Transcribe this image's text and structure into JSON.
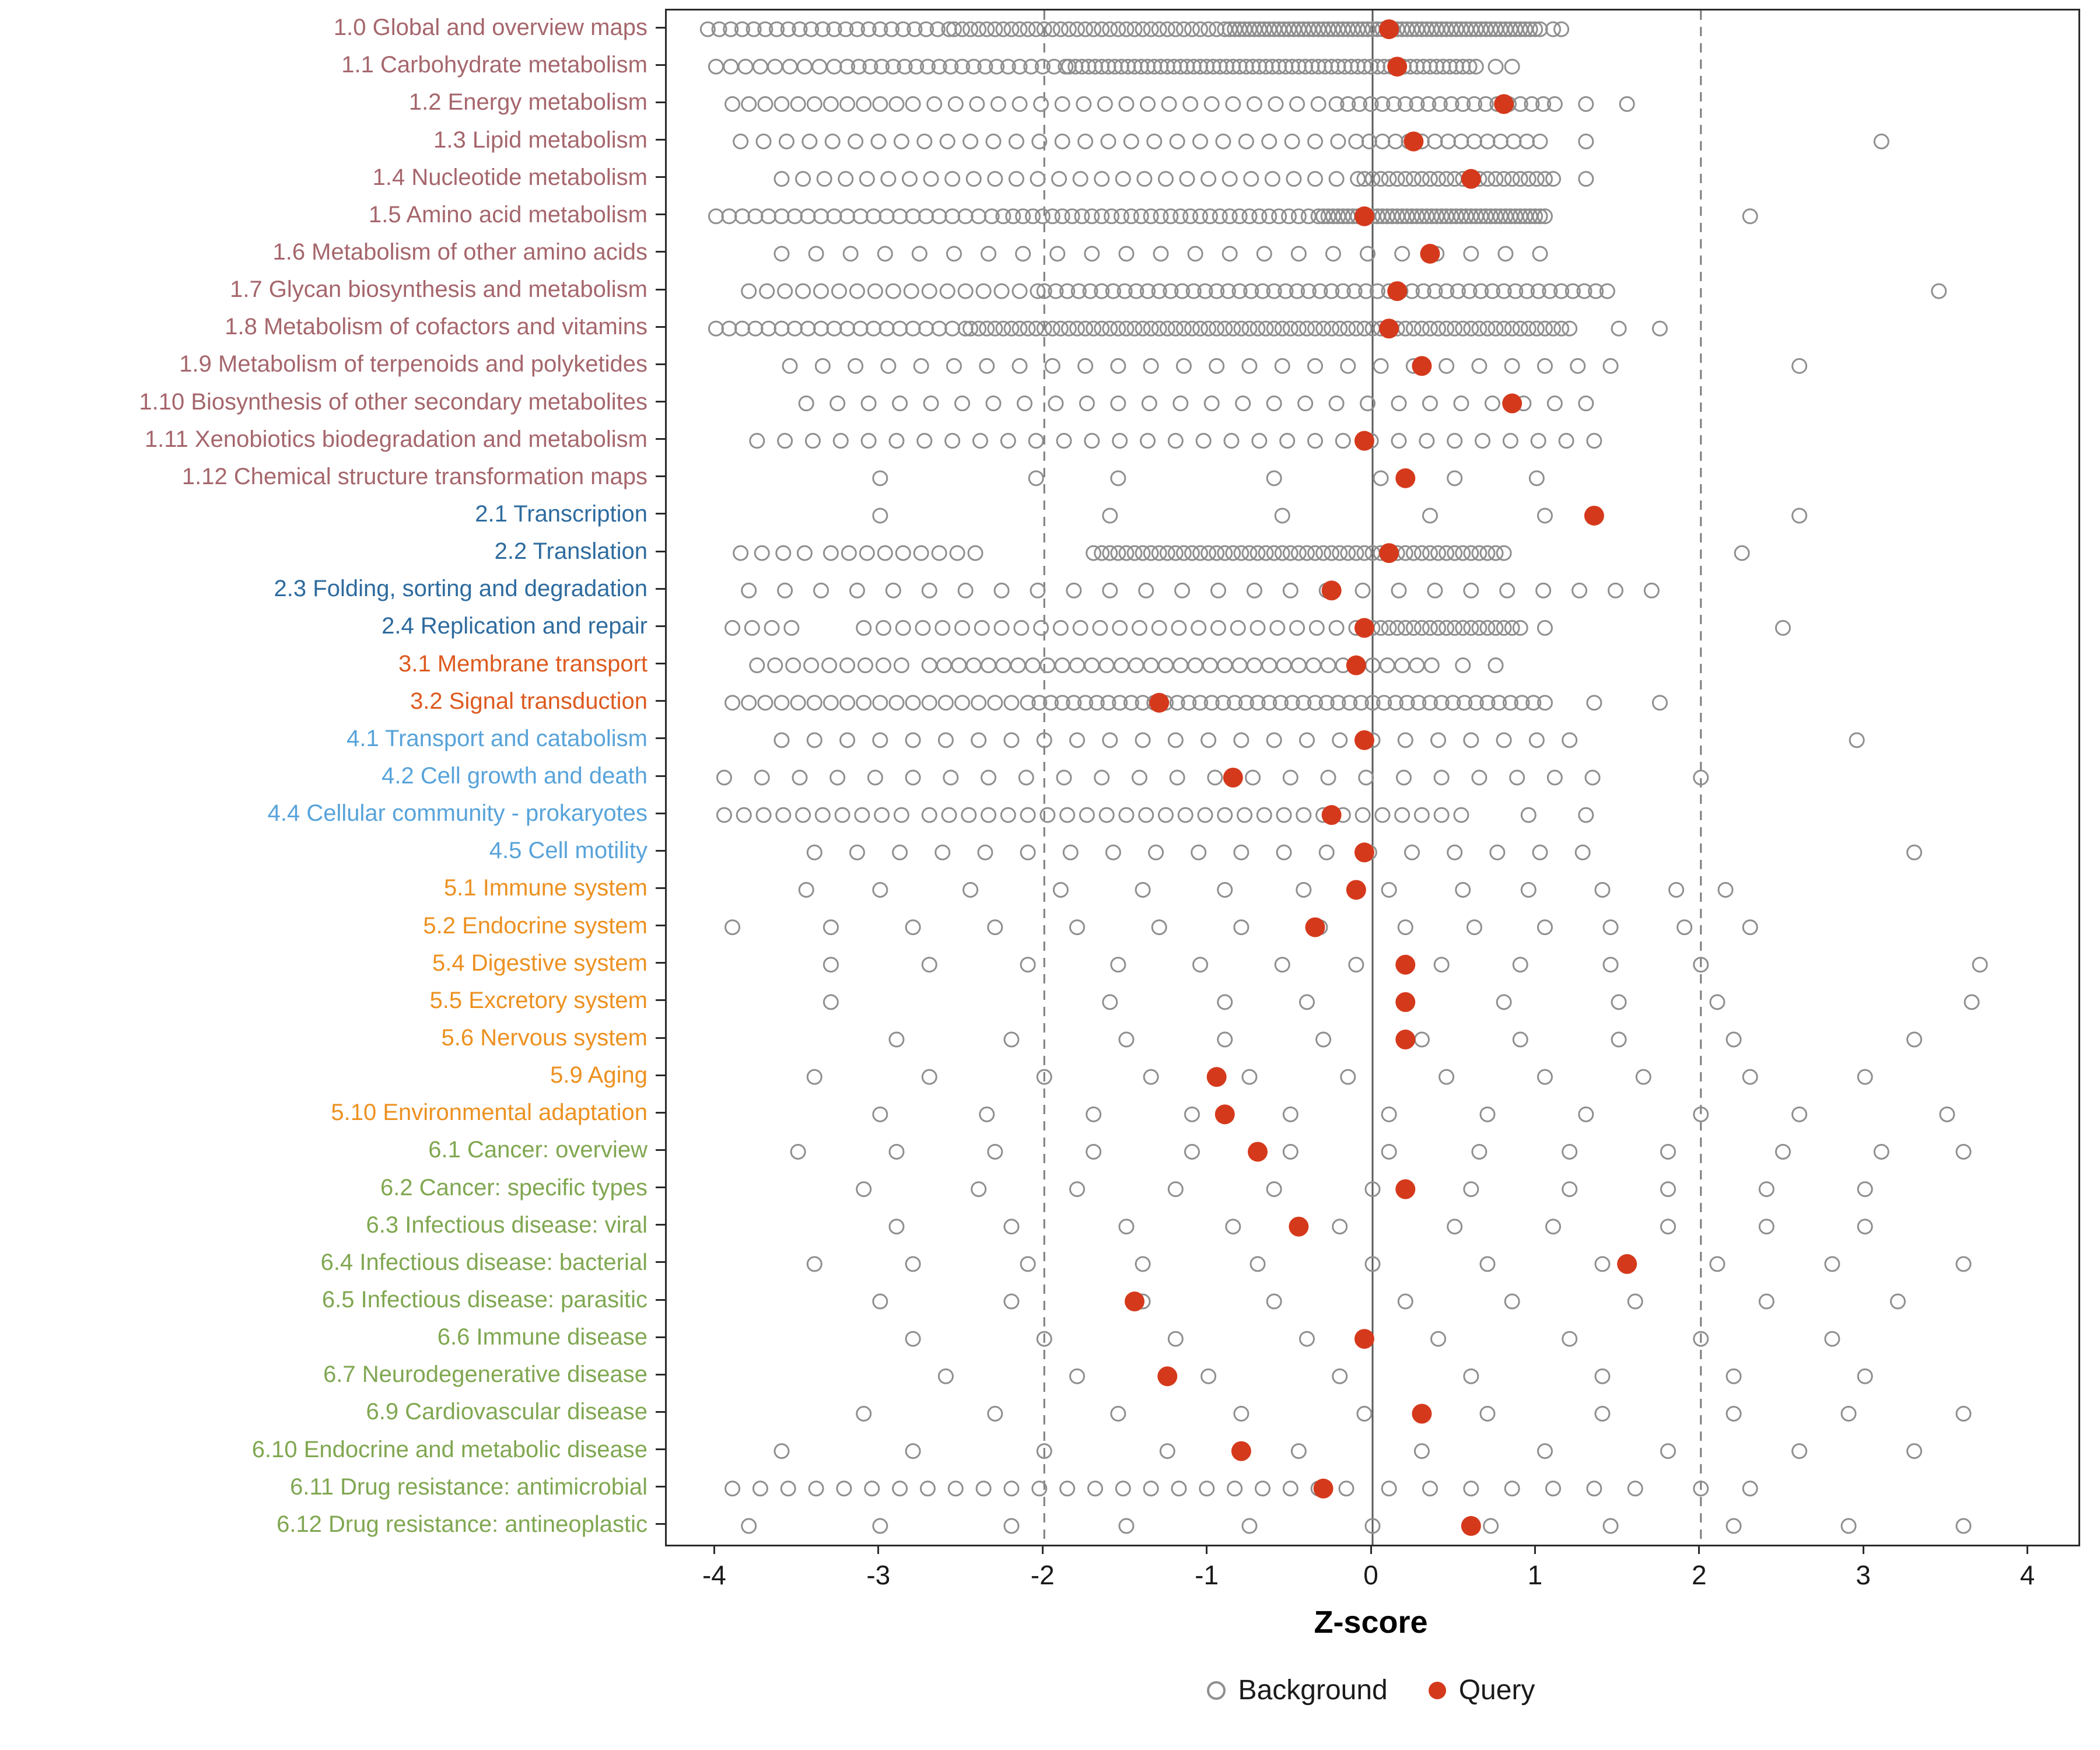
{
  "chart_data": {
    "type": "scatter",
    "title": "",
    "xlabel": "Z-score",
    "xlim": [
      -4.3,
      4.3
    ],
    "x_ticks": [
      -4,
      -3,
      -2,
      -1,
      0,
      1,
      2,
      3,
      4
    ],
    "reference_lines": {
      "solid": [
        0
      ],
      "dashed": [
        -2,
        2
      ]
    },
    "grid": false,
    "legend_position": "bottom",
    "legend": [
      {
        "label": "Background",
        "marker": "open-circle",
        "color": "#8f8f8f"
      },
      {
        "label": "Query",
        "marker": "filled-circle",
        "color": "#d5391c"
      }
    ],
    "marker_colors": {
      "background": "#8f8f8f",
      "query": "#d5391c"
    },
    "group_colors": {
      "metabolism": "#a5666c",
      "genetic-information-processing": "#2e6b9e",
      "environmental-information-processing": "#dd5a1f",
      "cellular-processes": "#58a3da",
      "organismal-systems": "#ec9121",
      "human-diseases": "#80a751"
    },
    "rows": [
      {
        "label": "1.0 Global and overview maps",
        "group": "metabolism",
        "query": 0.1,
        "background": [
          [
            -4.05,
            -2.6,
            0.07
          ],
          [
            -2.55,
            -0.9,
            0.05
          ],
          [
            -0.87,
            1.02,
            0.03
          ],
          1.1,
          1.15
        ]
      },
      {
        "label": "1.1 Carbohydrate metabolism",
        "group": "metabolism",
        "query": 0.15,
        "background": [
          [
            -4.0,
            -3.3,
            0.09
          ],
          [
            -3.2,
            -1.9,
            0.07
          ],
          [
            -1.85,
            0.62,
            0.04
          ],
          0.75,
          0.85
        ]
      },
      {
        "label": "1.2 Energy metabolism",
        "group": "metabolism",
        "query": 0.8,
        "background": [
          [
            -3.9,
            -2.9,
            0.1
          ],
          [
            -2.8,
            -0.3,
            0.13
          ],
          [
            -0.22,
            1.08,
            0.07
          ],
          1.3,
          1.55
        ]
      },
      {
        "label": "1.3 Lipid metabolism",
        "group": "metabolism",
        "query": 0.25,
        "background": [
          [
            -3.85,
            -0.2,
            0.14
          ],
          [
            -0.1,
            1.05,
            0.08
          ],
          1.3,
          3.1
        ]
      },
      {
        "label": "1.4 Nucleotide metabolism",
        "group": "metabolism",
        "query": 0.6,
        "background": [
          [
            -3.6,
            -0.15,
            0.13
          ],
          [
            -0.05,
            1.1,
            0.05
          ],
          1.3
        ]
      },
      {
        "label": "1.5 Amino acid metabolism",
        "group": "metabolism",
        "query": -0.05,
        "background": [
          [
            -4.0,
            -2.3,
            0.08
          ],
          [
            -2.25,
            -0.32,
            0.06
          ],
          [
            -0.3,
            1.05,
            0.03
          ],
          2.3
        ]
      },
      {
        "label": "1.6 Metabolism of other amino acids",
        "group": "metabolism",
        "query": 0.35,
        "background": [
          [
            -3.6,
            1.1,
            0.21
          ]
        ]
      },
      {
        "label": "1.7 Glycan biosynthesis and metabolism",
        "group": "metabolism",
        "query": 0.15,
        "background": [
          [
            -3.8,
            -2.05,
            0.11
          ],
          [
            -2.0,
            1.4,
            0.07
          ],
          3.45
        ]
      },
      {
        "label": "1.8 Metabolism of cofactors and vitamins",
        "group": "metabolism",
        "query": 0.1,
        "background": [
          [
            -4.0,
            -2.5,
            0.08
          ],
          [
            -2.45,
            1.2,
            0.05
          ],
          1.5,
          1.75
        ]
      },
      {
        "label": "1.9 Metabolism of terpenoids and polyketides",
        "group": "metabolism",
        "query": 0.3,
        "background": [
          [
            -3.55,
            1.45,
            0.2
          ],
          2.6
        ]
      },
      {
        "label": "1.10 Biosynthesis of other secondary metabolites",
        "group": "metabolism",
        "query": 0.85,
        "background": [
          [
            -3.45,
            1.3,
            0.19
          ]
        ]
      },
      {
        "label": "1.11 Xenobiotics biodegradation and metabolism",
        "group": "metabolism",
        "query": -0.05,
        "background": [
          [
            -3.75,
            1.35,
            0.17
          ]
        ]
      },
      {
        "label": "1.12 Chemical structure transformation maps",
        "group": "metabolism",
        "query": 0.2,
        "background": [
          -3.0,
          -2.05,
          -1.55,
          -0.6,
          0.05,
          0.5,
          1.0
        ]
      },
      {
        "label": "2.1 Transcription",
        "group": "genetic-information-processing",
        "query": 1.35,
        "background": [
          -3.0,
          -1.6,
          -0.55,
          0.35,
          1.05,
          2.6
        ]
      },
      {
        "label": "2.2 Translation",
        "group": "genetic-information-processing",
        "query": 0.1,
        "background": [
          [
            -3.85,
            -3.45,
            0.13
          ],
          [
            -3.3,
            -2.4,
            0.11
          ],
          [
            -1.7,
            0.82,
            0.05
          ],
          2.25
        ]
      },
      {
        "label": "2.3 Folding, sorting and degradation",
        "group": "genetic-information-processing",
        "query": -0.25,
        "background": [
          [
            -3.8,
            1.7,
            0.22
          ]
        ]
      },
      {
        "label": "2.4 Replication and repair",
        "group": "genetic-information-processing",
        "query": -0.05,
        "background": [
          [
            -3.9,
            -3.55,
            0.12
          ],
          [
            -3.1,
            -0.15,
            0.12
          ],
          [
            -0.05,
            0.92,
            0.05
          ],
          1.05,
          2.5
        ]
      },
      {
        "label": "3.1 Membrane transport",
        "group": "environmental-information-processing",
        "query": -0.1,
        "background": [
          [
            -3.75,
            -2.85,
            0.11
          ],
          [
            -2.7,
            0.35,
            0.09
          ],
          0.55,
          0.75
        ]
      },
      {
        "label": "3.2 Signal transduction",
        "group": "environmental-information-processing",
        "query": -1.3,
        "background": [
          [
            -3.9,
            -2.2,
            0.1
          ],
          [
            -2.1,
            1.05,
            0.07
          ],
          1.35,
          1.75
        ]
      },
      {
        "label": "4.1 Transport and catabolism",
        "group": "cellular-processes",
        "query": -0.05,
        "background": [
          [
            -3.6,
            1.1,
            0.2
          ],
          2.95
        ]
      },
      {
        "label": "4.2 Cell growth and death",
        "group": "cellular-processes",
        "query": -0.85,
        "background": [
          [
            -3.95,
            1.35,
            0.23
          ],
          2.0
        ]
      },
      {
        "label": "4.4 Cellular community - prokaryotes",
        "group": "cellular-processes",
        "query": -0.25,
        "background": [
          [
            -3.95,
            -2.85,
            0.12
          ],
          [
            -2.7,
            0.55,
            0.12
          ],
          0.95,
          1.3
        ]
      },
      {
        "label": "4.5 Cell motility",
        "group": "cellular-processes",
        "query": -0.05,
        "background": [
          [
            -3.4,
            1.2,
            0.26
          ],
          3.3
        ]
      },
      {
        "label": "5.1 Immune system",
        "group": "organismal-systems",
        "query": -0.1,
        "background": [
          -3.45,
          -3.0,
          -2.45,
          -1.9,
          -1.4,
          -0.9,
          -0.42,
          0.1,
          0.55,
          0.95,
          1.4,
          1.85,
          2.15
        ]
      },
      {
        "label": "5.2 Endocrine system",
        "group": "organismal-systems",
        "query": -0.35,
        "background": [
          -3.9,
          -3.3,
          -2.8,
          -2.3,
          -1.8,
          -1.3,
          -0.8,
          -0.32,
          0.2,
          0.62,
          1.05,
          1.45,
          1.9,
          2.3
        ]
      },
      {
        "label": "5.4 Digestive system",
        "group": "organismal-systems",
        "query": 0.2,
        "background": [
          -3.3,
          -2.7,
          -2.1,
          -1.55,
          -1.05,
          -0.55,
          -0.1,
          0.42,
          0.9,
          1.45,
          2.0,
          3.7
        ]
      },
      {
        "label": "5.5 Excretory system",
        "group": "organismal-systems",
        "query": 0.2,
        "background": [
          -3.3,
          -1.6,
          -0.9,
          -0.4,
          0.2,
          0.8,
          1.5,
          2.1,
          3.65
        ]
      },
      {
        "label": "5.6 Nervous system",
        "group": "organismal-systems",
        "query": 0.2,
        "background": [
          -2.9,
          -2.2,
          -1.5,
          -0.9,
          -0.3,
          0.3,
          0.9,
          1.5,
          2.2,
          3.3
        ]
      },
      {
        "label": "5.9 Aging",
        "group": "organismal-systems",
        "query": -0.95,
        "background": [
          -3.4,
          -2.7,
          -2.0,
          -1.35,
          -0.75,
          -0.15,
          0.45,
          1.05,
          1.65,
          2.3,
          3.0
        ]
      },
      {
        "label": "5.10 Environmental adaptation",
        "group": "organismal-systems",
        "query": -0.9,
        "background": [
          -3.0,
          -2.35,
          -1.7,
          -1.1,
          -0.5,
          0.1,
          0.7,
          1.3,
          2.0,
          2.6,
          3.5
        ]
      },
      {
        "label": "6.1 Cancer: overview",
        "group": "human-diseases",
        "query": -0.7,
        "background": [
          -3.5,
          -2.9,
          -2.3,
          -1.7,
          -1.1,
          -0.5,
          0.1,
          0.65,
          1.2,
          1.8,
          2.5,
          3.1,
          3.6
        ]
      },
      {
        "label": "6.2 Cancer: specific types",
        "group": "human-diseases",
        "query": 0.2,
        "background": [
          -3.1,
          -2.4,
          -1.8,
          -1.2,
          -0.6,
          0.0,
          0.6,
          1.2,
          1.8,
          2.4,
          3.0
        ]
      },
      {
        "label": "6.3 Infectious disease: viral",
        "group": "human-diseases",
        "query": -0.45,
        "background": [
          -2.9,
          -2.2,
          -1.5,
          -0.85,
          -0.2,
          0.5,
          1.1,
          1.8,
          2.4,
          3.0
        ]
      },
      {
        "label": "6.4 Infectious disease: bacterial",
        "group": "human-diseases",
        "query": 1.55,
        "background": [
          -3.4,
          -2.8,
          -2.1,
          -1.4,
          -0.7,
          0.0,
          0.7,
          1.4,
          2.1,
          2.8,
          3.6
        ]
      },
      {
        "label": "6.5 Infectious disease: parasitic",
        "group": "human-diseases",
        "query": -1.45,
        "background": [
          -3.0,
          -2.2,
          -1.4,
          -0.6,
          0.2,
          0.85,
          1.6,
          2.4,
          3.2
        ]
      },
      {
        "label": "6.6 Immune disease",
        "group": "human-diseases",
        "query": -0.05,
        "background": [
          -2.8,
          -2.0,
          -1.2,
          -0.4,
          0.4,
          1.2,
          2.0,
          2.8
        ]
      },
      {
        "label": "6.7 Neurodegenerative disease",
        "group": "human-diseases",
        "query": -1.25,
        "background": [
          -2.6,
          -1.8,
          -1.0,
          -0.2,
          0.6,
          1.4,
          2.2,
          3.0
        ]
      },
      {
        "label": "6.9 Cardiovascular disease",
        "group": "human-diseases",
        "query": 0.3,
        "background": [
          -3.1,
          -2.3,
          -1.55,
          -0.8,
          -0.05,
          0.7,
          1.4,
          2.2,
          2.9,
          3.6
        ]
      },
      {
        "label": "6.10 Endocrine and metabolic disease",
        "group": "human-diseases",
        "query": -0.8,
        "background": [
          -3.6,
          -2.8,
          -2.0,
          -1.25,
          -0.45,
          0.3,
          1.05,
          1.8,
          2.6,
          3.3
        ]
      },
      {
        "label": "6.11 Drug resistance: antimicrobial",
        "group": "human-diseases",
        "query": -0.3,
        "background": [
          [
            -3.9,
            -0.1,
            0.17
          ],
          [
            0.1,
            1.6,
            0.25
          ],
          2.0,
          2.3
        ]
      },
      {
        "label": "6.12 Drug resistance: antineoplastic",
        "group": "human-diseases",
        "query": 0.6,
        "background": [
          -3.8,
          -3.0,
          -2.2,
          -1.5,
          -0.75,
          0.0,
          0.72,
          1.45,
          2.2,
          2.9,
          3.6
        ]
      }
    ]
  }
}
